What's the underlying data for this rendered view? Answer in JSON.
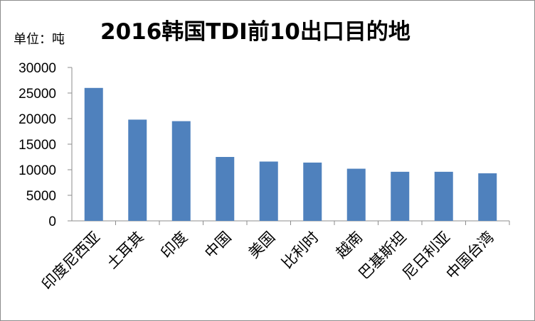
{
  "chart_data": {
    "type": "bar",
    "title": "2016韩国TDI前10出口目的地",
    "unit_label": "单位：吨",
    "categories": [
      "印度尼西亚",
      "土耳其",
      "印度",
      "中国",
      "美国",
      "比利时",
      "越南",
      "巴基斯坦",
      "尼日利亚",
      "中国台湾"
    ],
    "values": [
      26000,
      19800,
      19500,
      12500,
      11600,
      11400,
      10200,
      9600,
      9600,
      9300
    ],
    "ylim": [
      0,
      30000
    ],
    "yticks": [
      0,
      5000,
      10000,
      15000,
      20000,
      25000,
      30000
    ],
    "grid": false,
    "legend": "none",
    "bar_color": "#4f81bd"
  }
}
